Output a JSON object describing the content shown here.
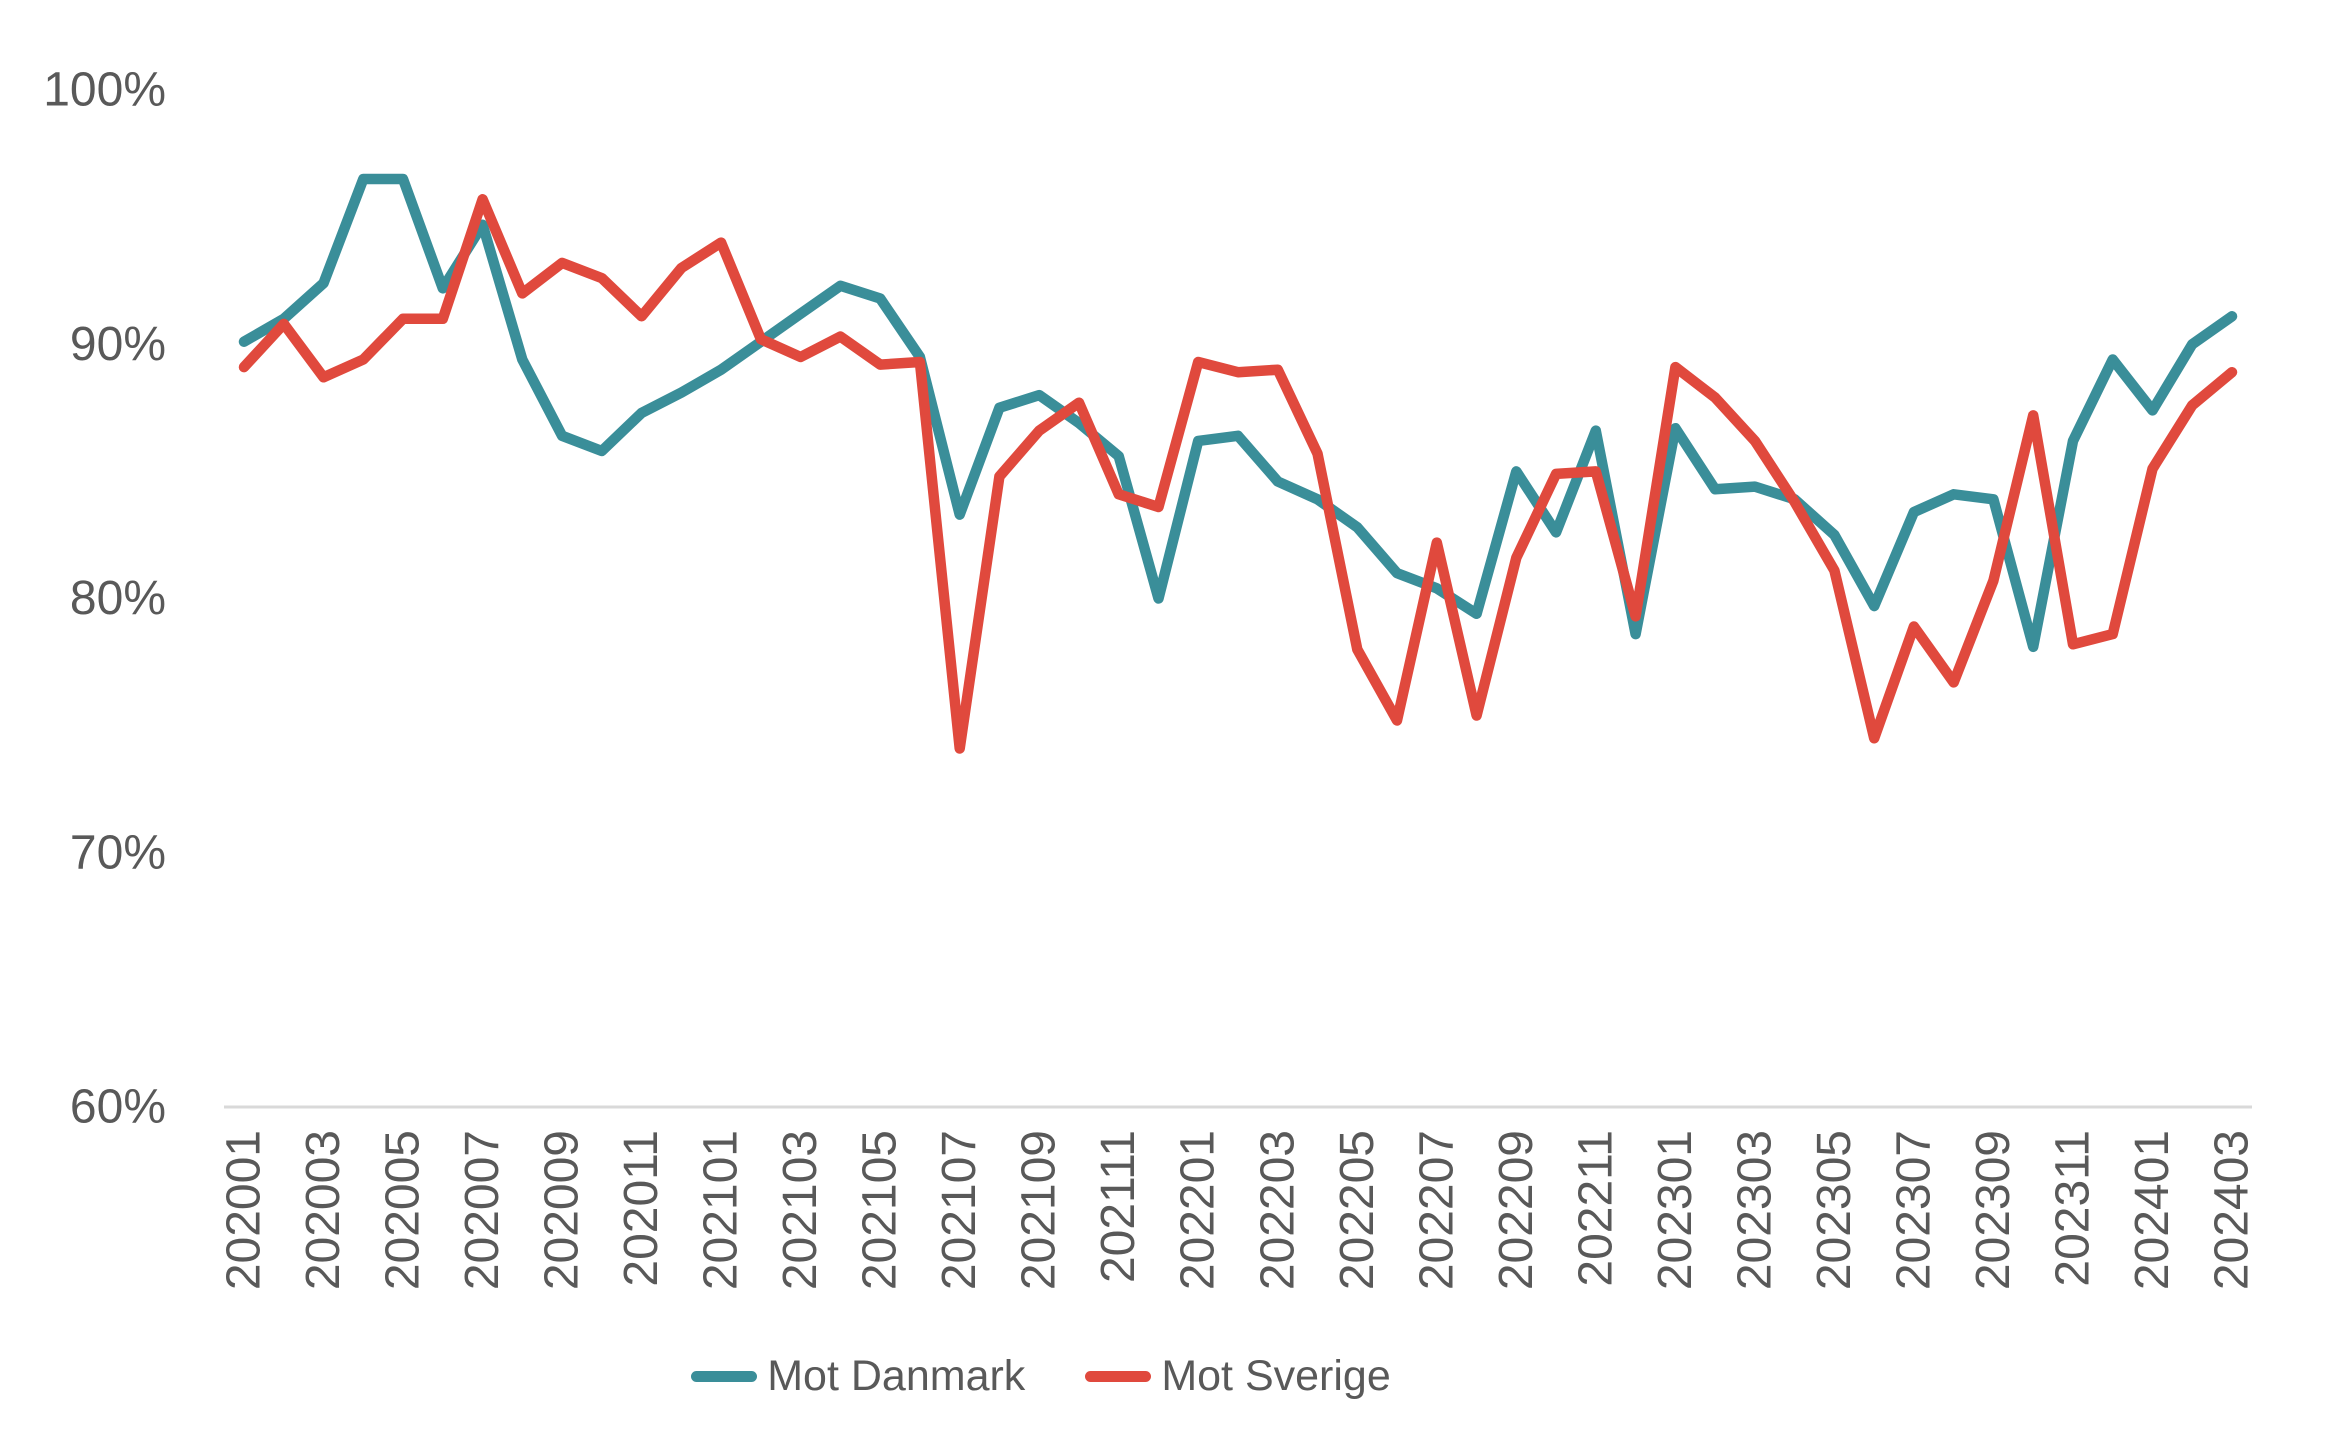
{
  "chart_data": {
    "type": "line",
    "x": [
      "202001",
      "202002",
      "202003",
      "202004",
      "202005",
      "202006",
      "202007",
      "202008",
      "202009",
      "202010",
      "202011",
      "202012",
      "202101",
      "202102",
      "202103",
      "202104",
      "202105",
      "202106",
      "202107",
      "202108",
      "202109",
      "202110",
      "202111",
      "202112",
      "202201",
      "202202",
      "202203",
      "202204",
      "202205",
      "202206",
      "202207",
      "202208",
      "202209",
      "202210",
      "202211",
      "202212",
      "202301",
      "202302",
      "202303",
      "202304",
      "202305",
      "202306",
      "202307",
      "202308",
      "202309",
      "202310",
      "202311",
      "202312",
      "202401",
      "202402",
      "202403"
    ],
    "x_tick_step": 2,
    "series": [
      {
        "name": "Mot Danmark",
        "color": "#3A8E99",
        "values": [
          90.1,
          91.0,
          92.4,
          96.5,
          96.5,
          92.2,
          94.7,
          89.4,
          86.4,
          85.8,
          87.3,
          88.1,
          89.0,
          90.1,
          91.2,
          92.3,
          91.8,
          89.5,
          83.3,
          87.5,
          88.0,
          86.9,
          85.6,
          80.0,
          86.2,
          86.4,
          84.6,
          83.9,
          82.8,
          81.0,
          80.4,
          79.4,
          85.0,
          82.6,
          86.6,
          78.6,
          86.7,
          84.3,
          84.4,
          83.9,
          82.5,
          79.7,
          83.4,
          84.1,
          83.9,
          78.1,
          86.2,
          89.4,
          87.4,
          90.0,
          91.1
        ]
      },
      {
        "name": "Mot Sverige",
        "color": "#E0493D",
        "values": [
          89.1,
          90.8,
          88.7,
          89.4,
          91.0,
          91.0,
          95.7,
          92.0,
          93.2,
          92.6,
          91.1,
          93.0,
          94.0,
          90.2,
          89.5,
          90.3,
          89.2,
          89.3,
          74.1,
          84.8,
          86.6,
          87.7,
          84.1,
          83.6,
          89.3,
          88.9,
          89.0,
          85.7,
          78.0,
          75.2,
          82.2,
          75.4,
          81.6,
          84.9,
          85.0,
          79.3,
          89.1,
          87.9,
          86.2,
          83.8,
          81.1,
          74.5,
          78.9,
          76.7,
          80.7,
          87.2,
          78.2,
          78.6,
          85.1,
          87.6,
          88.9
        ]
      }
    ],
    "title": "",
    "xlabel": "",
    "ylabel": "",
    "ylim": [
      60,
      100
    ],
    "y_ticks": [
      100,
      90,
      80,
      70,
      60
    ],
    "y_tick_suffix": "%",
    "grid": "off",
    "baseline_at": 60,
    "legend_position": "bottom-center"
  },
  "legend": {
    "items": [
      {
        "label": "Mot Danmark"
      },
      {
        "label": "Mot Sverige"
      }
    ]
  },
  "colors": {
    "series_danmark": "#3A8E99",
    "series_sverige": "#E0493D",
    "tick_text": "#595959",
    "axis_line": "#D9D9D9",
    "background": "#FFFFFF"
  }
}
